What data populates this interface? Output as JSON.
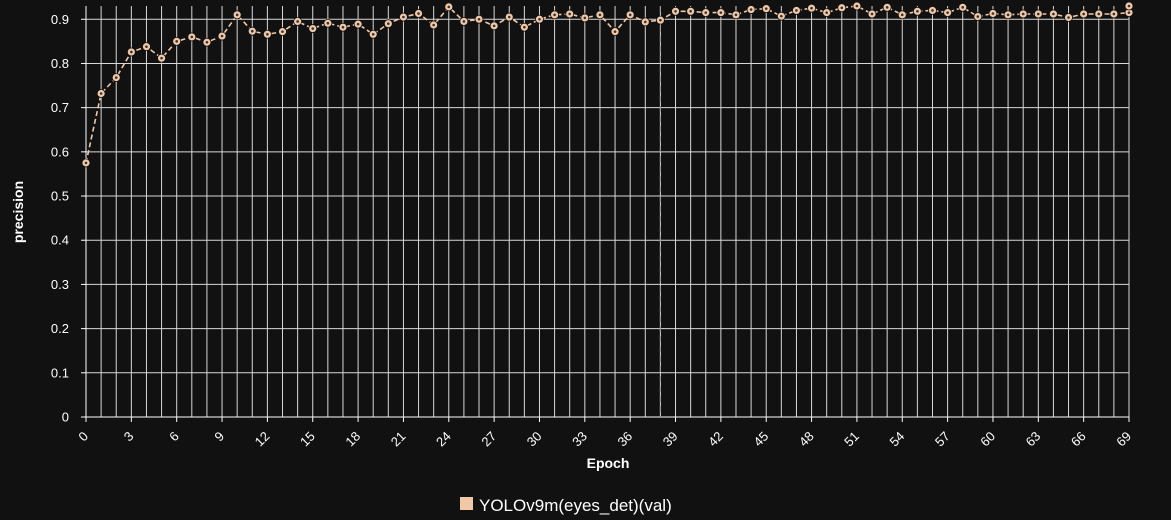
{
  "chart_data": {
    "type": "line",
    "xlabel": "Epoch",
    "ylabel": "precision",
    "xlim": [
      0,
      69
    ],
    "ylim": [
      0,
      0.93
    ],
    "yticks": [
      0,
      0.1,
      0.2,
      0.3,
      0.4,
      0.5,
      0.6,
      0.7,
      0.8,
      0.9
    ],
    "xticks": [
      0,
      3,
      6,
      9,
      12,
      15,
      18,
      21,
      24,
      27,
      30,
      33,
      36,
      39,
      42,
      45,
      48,
      51,
      54,
      57,
      60,
      63,
      66,
      69
    ],
    "grid": true,
    "legend_position": "bottom-center",
    "reference_line_x": 38,
    "series": [
      {
        "name": "YOLOv9m(eyes_det)(val)",
        "color": "#f0c8a8",
        "x": [
          0,
          1,
          2,
          3,
          4,
          5,
          6,
          7,
          8,
          9,
          10,
          11,
          12,
          13,
          14,
          15,
          16,
          17,
          18,
          19,
          20,
          21,
          22,
          23,
          24,
          25,
          26,
          27,
          28,
          29,
          30,
          31,
          32,
          33,
          34,
          35,
          36,
          37,
          38,
          39,
          40,
          41,
          42,
          43,
          44,
          45,
          46,
          47,
          48,
          49,
          50,
          51,
          52,
          53,
          54,
          55,
          56,
          57,
          58,
          59,
          60,
          61,
          62,
          63,
          64,
          65,
          66,
          67,
          68,
          69,
          69
        ],
        "y": [
          0.575,
          0.732,
          0.768,
          0.826,
          0.838,
          0.812,
          0.85,
          0.86,
          0.848,
          0.862,
          0.91,
          0.873,
          0.866,
          0.872,
          0.895,
          0.879,
          0.891,
          0.882,
          0.889,
          0.866,
          0.89,
          0.905,
          0.913,
          0.887,
          0.928,
          0.895,
          0.9,
          0.885,
          0.905,
          0.882,
          0.9,
          0.91,
          0.912,
          0.903,
          0.91,
          0.872,
          0.91,
          0.894,
          0.898,
          0.918,
          0.918,
          0.915,
          0.915,
          0.91,
          0.922,
          0.924,
          0.907,
          0.92,
          0.925,
          0.915,
          0.926,
          0.93,
          0.912,
          0.927,
          0.91,
          0.918,
          0.92,
          0.915,
          0.927,
          0.906,
          0.913,
          0.91,
          0.912,
          0.912,
          0.912,
          0.904,
          0.912,
          0.912,
          0.912,
          0.915,
          0.93
        ]
      }
    ]
  }
}
